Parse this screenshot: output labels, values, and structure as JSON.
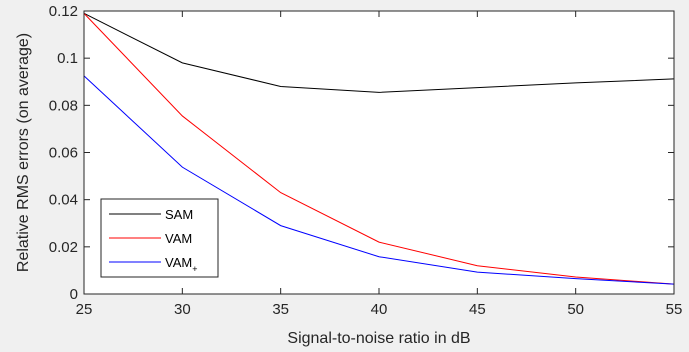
{
  "chart_data": {
    "type": "line",
    "xlabel": "Signal-to-noise ratio in dB",
    "ylabel": "Relative RMS errors (on average)",
    "xlim": [
      25,
      55
    ],
    "ylim": [
      0,
      0.12
    ],
    "xticks": [
      25,
      30,
      35,
      40,
      45,
      50,
      55
    ],
    "xtick_labels": [
      "25",
      "30",
      "35",
      "40",
      "45",
      "50",
      "55"
    ],
    "yticks": [
      0,
      0.02,
      0.04,
      0.06,
      0.08,
      0.1,
      0.12
    ],
    "ytick_labels": [
      "0",
      "0.02",
      "0.04",
      "0.06",
      "0.08",
      "0.1",
      "0.12"
    ],
    "grid": false,
    "legend_position": "bottom-left",
    "x": [
      25,
      30,
      35,
      40,
      45,
      50,
      55
    ],
    "series": [
      {
        "name": "SAM",
        "name_base": "SAM",
        "name_sub": "",
        "color": "#000000",
        "values": [
          0.119,
          0.098,
          0.088,
          0.0855,
          0.0875,
          0.0895,
          0.0912
        ]
      },
      {
        "name": "VAM",
        "name_base": "VAM",
        "name_sub": "",
        "color": "#ff0000",
        "values": [
          0.119,
          0.0755,
          0.043,
          0.022,
          0.012,
          0.0072,
          0.0042
        ]
      },
      {
        "name": "VAM+",
        "name_base": "VAM",
        "name_sub": "+",
        "color": "#0000ff",
        "values": [
          0.0925,
          0.0538,
          0.029,
          0.0158,
          0.0093,
          0.0065,
          0.0042
        ]
      }
    ]
  },
  "colors": {
    "figure_background": "#f0f0f0",
    "axes_background": "#ffffff",
    "axis_color": "#262626"
  }
}
